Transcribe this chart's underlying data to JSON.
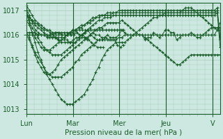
{
  "title": "",
  "xlabel": "Pression niveau de la mer( hPa )",
  "ylabel": "",
  "background_color": "#cce8e0",
  "grid_color": "#aaccbb",
  "line_color": "#1a5c2a",
  "ylim": [
    1012.8,
    1017.3
  ],
  "xlim": [
    0,
    4.16
  ],
  "x_ticks": [
    0,
    1,
    2,
    3,
    4
  ],
  "x_tick_labels": [
    "Lun",
    "Mar",
    "Mer",
    "Jeu",
    "V"
  ],
  "y_ticks": [
    1013,
    1014,
    1015,
    1016,
    1017
  ],
  "series": [
    [
      1016.0,
      1016.0,
      1016.0,
      1016.0,
      1016.0,
      1016.0,
      1016.0,
      1016.0,
      1016.0,
      1016.0,
      1016.0,
      1016.0,
      1016.0,
      1016.0,
      1016.0,
      1016.0,
      1016.0,
      1016.2,
      1016.0,
      1016.0,
      1016.1,
      1016.2,
      1016.0,
      1015.9,
      1015.8,
      1015.8,
      1015.8,
      1015.9,
      1015.8,
      1015.8,
      1015.8,
      1015.6,
      1015.5,
      1015.6
    ],
    [
      1017.1,
      1016.8,
      1016.5,
      1016.2,
      1016.1,
      1016.0,
      1016.0,
      1015.9,
      1016.0,
      1016.0,
      1016.1,
      1016.1,
      1016.0,
      1016.0,
      1016.0,
      1016.0,
      1016.0,
      1016.1,
      1016.0,
      1016.0,
      1015.9,
      1015.8,
      1015.7,
      1015.6,
      1015.5,
      1015.5,
      1015.5
    ],
    [
      1016.1,
      1016.1,
      1016.1,
      1016.1,
      1016.0,
      1016.0,
      1016.0,
      1016.0,
      1016.0,
      1015.9,
      1015.9,
      1015.8,
      1015.8,
      1015.8,
      1015.8,
      1015.7,
      1015.7,
      1015.7,
      1015.8,
      1015.9,
      1015.9,
      1015.8,
      1016.0,
      1016.1,
      1016.0,
      1016.0,
      1015.9,
      1015.9,
      1016.0,
      1015.9,
      1015.9,
      1015.9,
      1016.0,
      1016.2,
      1016.1,
      1016.0,
      1016.0,
      1016.0,
      1016.0,
      1016.0,
      1016.0,
      1015.8,
      1015.9,
      1015.9,
      1016.1,
      1016.0,
      1015.9,
      1016.0,
      1016.2,
      1016.2,
      1016.1,
      1016.1,
      1015.8,
      1015.9,
      1016.0,
      1016.0,
      1016.0,
      1016.1,
      1016.0,
      1015.9,
      1015.9,
      1016.0,
      1016.1,
      1016.2,
      1016.3,
      1016.3,
      1016.3,
      1016.3
    ],
    [
      1016.0,
      1015.8,
      1015.5,
      1015.2,
      1014.9,
      1014.7,
      1014.5,
      1014.4,
      1014.4,
      1014.5,
      1014.6,
      1014.8,
      1015.0,
      1015.1,
      1015.2,
      1015.3,
      1015.4,
      1015.5,
      1015.6,
      1015.7,
      1015.8,
      1015.9,
      1016.0,
      1016.1,
      1016.2,
      1016.3,
      1016.3,
      1016.4,
      1016.5,
      1016.5,
      1016.5,
      1016.5,
      1016.5,
      1016.6,
      1016.5,
      1016.4,
      1016.3,
      1016.2,
      1016.1,
      1016.0,
      1016.0,
      1015.9,
      1015.8,
      1015.7,
      1015.6,
      1015.5,
      1015.4,
      1015.3,
      1015.2,
      1015.1,
      1015.0,
      1014.9,
      1014.8,
      1014.8,
      1014.9,
      1015.0,
      1015.1,
      1015.2,
      1015.2,
      1015.2,
      1015.2,
      1015.2,
      1015.2,
      1015.2,
      1015.2,
      1015.2,
      1015.2,
      1015.2
    ],
    [
      1016.6,
      1016.4,
      1016.1,
      1015.9,
      1015.7,
      1015.5,
      1015.4,
      1015.4,
      1015.4,
      1015.5,
      1015.6,
      1015.7,
      1015.8,
      1015.9,
      1016.0,
      1016.1,
      1016.2,
      1016.2,
      1016.2,
      1016.2,
      1016.2,
      1016.2,
      1016.2,
      1016.2,
      1016.2,
      1016.2,
      1016.2,
      1016.2,
      1016.2,
      1016.2,
      1016.2,
      1016.2,
      1016.2,
      1016.2
    ],
    [
      1016.9,
      1016.7,
      1016.6,
      1016.5,
      1016.4,
      1016.3,
      1016.2,
      1016.2,
      1016.1,
      1016.0,
      1015.9,
      1015.8,
      1015.7,
      1015.7,
      1015.7,
      1015.7,
      1015.8,
      1015.9,
      1015.9,
      1016.0,
      1016.1,
      1016.2,
      1016.2,
      1016.2,
      1016.2,
      1016.2,
      1016.2,
      1016.2,
      1016.2,
      1016.2,
      1016.2,
      1016.2,
      1016.2,
      1016.2
    ],
    [
      1016.9,
      1016.5,
      1016.1,
      1015.7,
      1015.3,
      1015.0,
      1014.7,
      1014.4,
      1014.2,
      1014.0,
      1013.8,
      1013.6,
      1013.4,
      1013.3,
      1013.2,
      1013.2,
      1013.2,
      1013.3,
      1013.4,
      1013.5,
      1013.6,
      1013.8,
      1014.0,
      1014.2,
      1014.5,
      1014.7,
      1015.0,
      1015.2,
      1015.4,
      1015.5,
      1015.6,
      1015.7,
      1015.7,
      1015.7,
      1015.7,
      1015.8,
      1015.9,
      1016.0,
      1016.1,
      1016.2,
      1016.3,
      1016.4,
      1016.5,
      1016.6,
      1016.7,
      1016.7,
      1016.8,
      1016.8,
      1016.9,
      1016.9,
      1016.9,
      1016.9,
      1016.9,
      1016.9,
      1017.0,
      1017.1,
      1017.1,
      1017.1,
      1017.0,
      1016.9,
      1016.8,
      1016.7,
      1016.6,
      1016.5,
      1016.4,
      1016.3,
      1016.2,
      1016.2
    ],
    [
      1016.1,
      1015.9,
      1015.6,
      1015.3,
      1015.1,
      1014.9,
      1014.7,
      1014.5,
      1014.4,
      1014.3,
      1014.3,
      1014.3,
      1014.3,
      1014.4,
      1014.5,
      1014.6,
      1014.7,
      1014.9,
      1015.0,
      1015.2,
      1015.3,
      1015.4,
      1015.5,
      1015.6,
      1015.7,
      1015.8,
      1015.8,
      1015.8,
      1015.8,
      1015.8,
      1015.8,
      1015.8,
      1015.9,
      1015.9,
      1016.0,
      1016.0,
      1016.0,
      1016.0,
      1016.0,
      1016.0,
      1016.0,
      1016.0,
      1016.0,
      1016.0,
      1016.0,
      1016.0,
      1016.0,
      1016.0,
      1016.0,
      1016.0,
      1016.0,
      1016.0,
      1016.0,
      1016.0,
      1016.0,
      1016.0,
      1016.0,
      1016.0,
      1016.0,
      1016.0,
      1016.0,
      1016.0,
      1016.0,
      1016.0,
      1016.0,
      1016.0,
      1016.2,
      1016.5
    ],
    [
      1016.9,
      1016.6,
      1016.3,
      1016.1,
      1015.9,
      1015.7,
      1015.5,
      1015.4,
      1015.3,
      1015.2,
      1015.2,
      1015.2,
      1015.2,
      1015.3,
      1015.4,
      1015.5,
      1015.6,
      1015.7,
      1015.9,
      1016.0,
      1016.1,
      1016.2,
      1016.3,
      1016.4,
      1016.5,
      1016.6,
      1016.6,
      1016.7,
      1016.7,
      1016.7,
      1016.8,
      1016.8,
      1016.8,
      1016.8,
      1016.8,
      1016.8,
      1016.8,
      1016.8,
      1016.8,
      1016.8,
      1016.8,
      1016.8,
      1016.8,
      1016.8,
      1016.8,
      1016.8,
      1016.8,
      1016.8,
      1016.8,
      1016.8,
      1016.8,
      1016.8,
      1016.8,
      1016.8,
      1016.8,
      1016.8,
      1016.8,
      1016.8,
      1016.8,
      1016.8,
      1016.8,
      1016.8,
      1016.8,
      1016.8,
      1016.8,
      1016.8,
      1016.9,
      1015.5
    ],
    [
      1016.9,
      1016.7,
      1016.6,
      1016.4,
      1016.3,
      1016.2,
      1016.1,
      1016.0,
      1015.9,
      1015.9,
      1015.9,
      1015.9,
      1015.9,
      1015.9,
      1016.0,
      1016.1,
      1016.1,
      1016.2,
      1016.3,
      1016.4,
      1016.4,
      1016.5,
      1016.6,
      1016.7,
      1016.7,
      1016.8,
      1016.8,
      1016.8,
      1016.8,
      1016.8,
      1016.9,
      1016.9,
      1016.9,
      1016.9,
      1016.9,
      1016.9,
      1016.9,
      1016.9,
      1016.9,
      1016.9,
      1016.9,
      1016.9,
      1016.9,
      1016.9,
      1016.9,
      1016.9,
      1016.9,
      1016.9,
      1016.9,
      1016.9,
      1016.9,
      1016.9,
      1016.9,
      1016.9,
      1016.9,
      1016.9,
      1016.9,
      1016.9,
      1016.9,
      1016.9,
      1016.9,
      1016.9,
      1016.9,
      1016.9,
      1016.9,
      1016.9,
      1017.0,
      1015.8
    ],
    [
      1017.2,
      1017.0,
      1016.8,
      1016.6,
      1016.5,
      1016.4,
      1016.3,
      1016.2,
      1016.2,
      1016.1,
      1016.1,
      1016.1,
      1016.1,
      1016.1,
      1016.1,
      1016.1,
      1016.2,
      1016.2,
      1016.3,
      1016.3,
      1016.4,
      1016.5,
      1016.5,
      1016.6,
      1016.7,
      1016.7,
      1016.8,
      1016.8,
      1016.9,
      1016.9,
      1016.9,
      1016.9,
      1017.0,
      1017.0,
      1017.0,
      1017.0,
      1017.0,
      1017.0,
      1017.0,
      1017.0,
      1017.0,
      1017.0,
      1017.0,
      1017.0,
      1017.0,
      1017.0,
      1017.0,
      1017.0,
      1017.0,
      1017.0,
      1017.0,
      1017.0,
      1017.0,
      1017.0,
      1017.0,
      1017.0,
      1017.0,
      1017.0,
      1017.0,
      1017.0,
      1017.0,
      1017.0,
      1017.0,
      1017.0,
      1017.0,
      1017.0,
      1017.1,
      1015.9
    ]
  ]
}
